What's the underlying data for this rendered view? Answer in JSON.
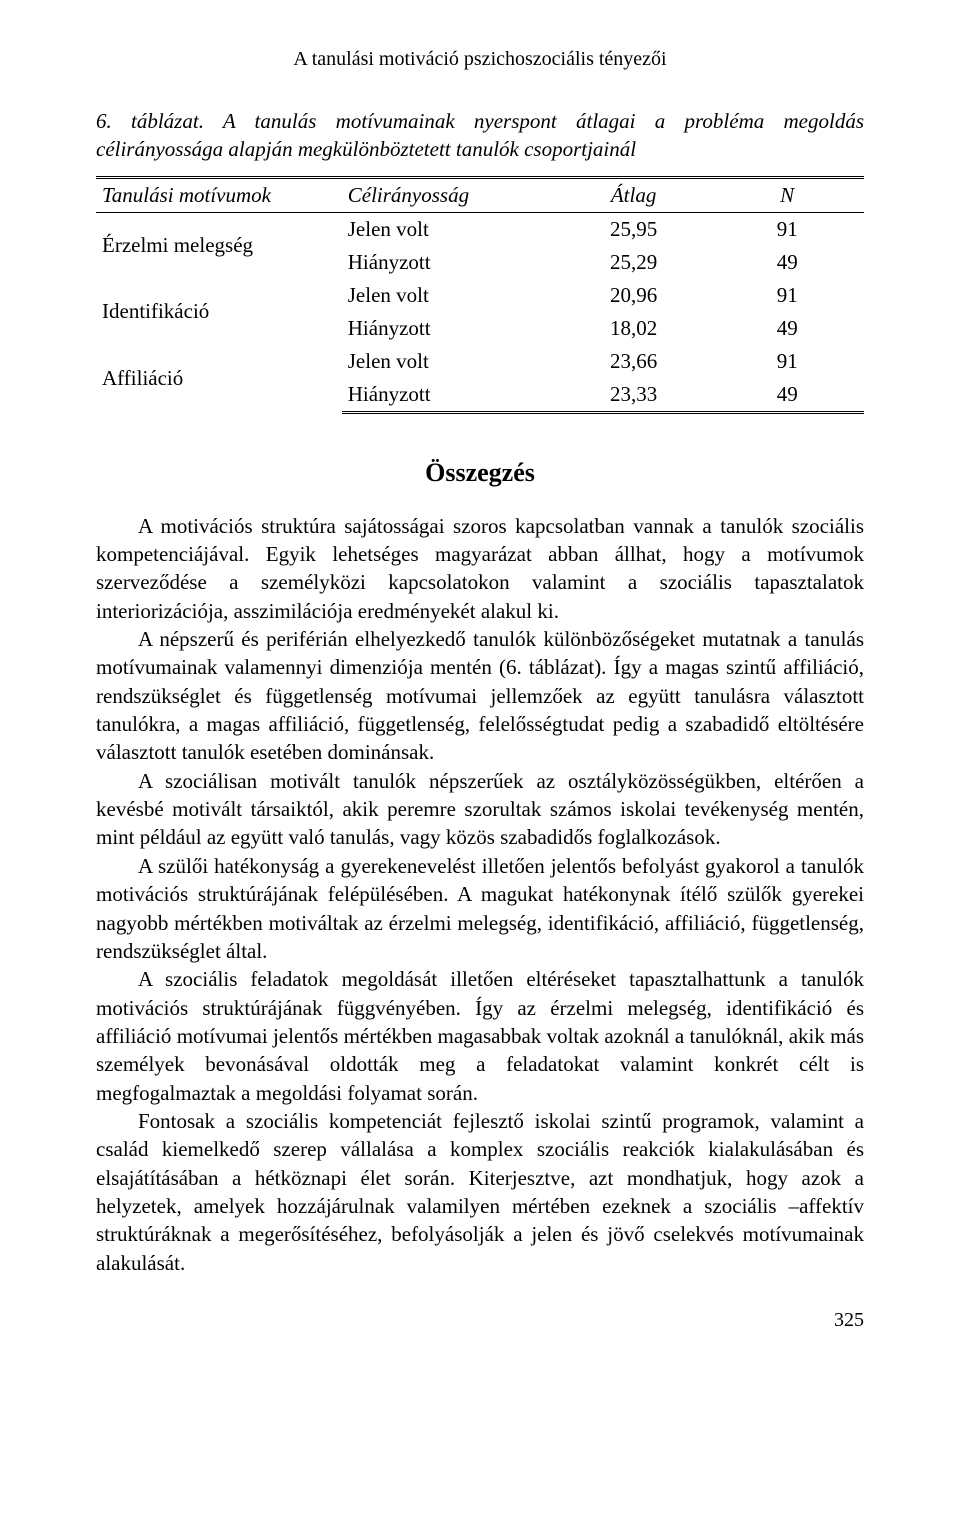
{
  "running_header": "A tanulási motiváció pszichoszociális tényezői",
  "table": {
    "caption_lead": "6. táblázat.",
    "caption_rest": " A tanulás motívumainak nyerspont átlagai a probléma megoldás célirányossága alapján megkülönböztetett tanulók csoportjainál",
    "columns": {
      "c1": "Tanulási motívumok",
      "c2": "Célirányosság",
      "c3": "Átlag",
      "c4": "N"
    },
    "rows": [
      {
        "head": "Érzelmi melegség",
        "sub": "Jelen volt",
        "avg": "25,95",
        "n": "91"
      },
      {
        "head": "",
        "sub": "Hiányzott",
        "avg": "25,29",
        "n": "49"
      },
      {
        "head": "Identifikáció",
        "sub": "Jelen volt",
        "avg": "20,96",
        "n": "91"
      },
      {
        "head": "",
        "sub": "Hiányzott",
        "avg": "18,02",
        "n": "49"
      },
      {
        "head": "Affiliáció",
        "sub": "Jelen volt",
        "avg": "23,66",
        "n": "91"
      },
      {
        "head": "",
        "sub": "Hiányzott",
        "avg": "23,33",
        "n": "49"
      }
    ]
  },
  "section_heading": "Összegzés",
  "paragraphs": {
    "p1": "A motivációs struktúra sajátosságai szoros kapcsolatban vannak a tanulók szociális kompetenciájával. Egyik lehetséges magyarázat abban állhat, hogy a motívumok szerveződése a személyközi kapcsolatokon valamint a szociális tapasztalatok interiorizációja, asszimilációja eredményekét alakul ki.",
    "p2": "A népszerű és periférián elhelyezkedő tanulók különbözőségeket mutatnak a tanulás motívumainak valamennyi dimenziója mentén (6. táblázat). Így a magas szintű affiliáció, rendszükséglet és függetlenség motívumai jellemzőek az együtt tanulásra választott tanulókra, a magas affiliáció, függetlenség, felelősségtudat pedig a szabadidő eltöltésére választott tanulók esetében dominánsak.",
    "p3": "A szociálisan motivált tanulók népszerűek az osztályközösségükben, eltérően a kevésbé motivált társaiktól, akik peremre szorultak számos iskolai tevékenység mentén, mint például az együtt való tanulás, vagy közös szabadidős foglalkozások.",
    "p4": "A szülői hatékonyság a gyerekenevelést illetően jelentős befolyást gyakorol a tanulók motivációs struktúrájának felépülésében. A magukat hatékonynak ítélő szülők gyerekei nagyobb mértékben motiváltak az érzelmi melegség, identifikáció, affiliáció, függetlenség, rendszükséglet által.",
    "p5": "A szociális feladatok megoldását illetően eltéréseket tapasztalhattunk a tanulók motivációs struktúrájának függvényében. Így az érzelmi melegség, identifikáció és affiliáció motívumai jelentős mértékben magasabbak voltak azoknál a tanulóknál, akik más személyek bevonásával oldották meg a feladatokat valamint konkrét célt is megfogalmaztak a megoldási folyamat során.",
    "p6": "Fontosak a szociális kompetenciát fejlesztő iskolai szintű programok, valamint a család kiemelkedő szerep vállalása a komplex szociális reakciók kialakulásában és elsajátításában a hétköznapi élet során. Kiterjesztve, azt mondhatjuk, hogy azok a helyzetek, amelyek hozzájárulnak valamilyen mértében ezeknek a szociális –affektív struktúráknak a megerősítéséhez, befolyásolják a jelen és jövő cselekvés motívumainak alakulását."
  },
  "page_number": "325"
}
